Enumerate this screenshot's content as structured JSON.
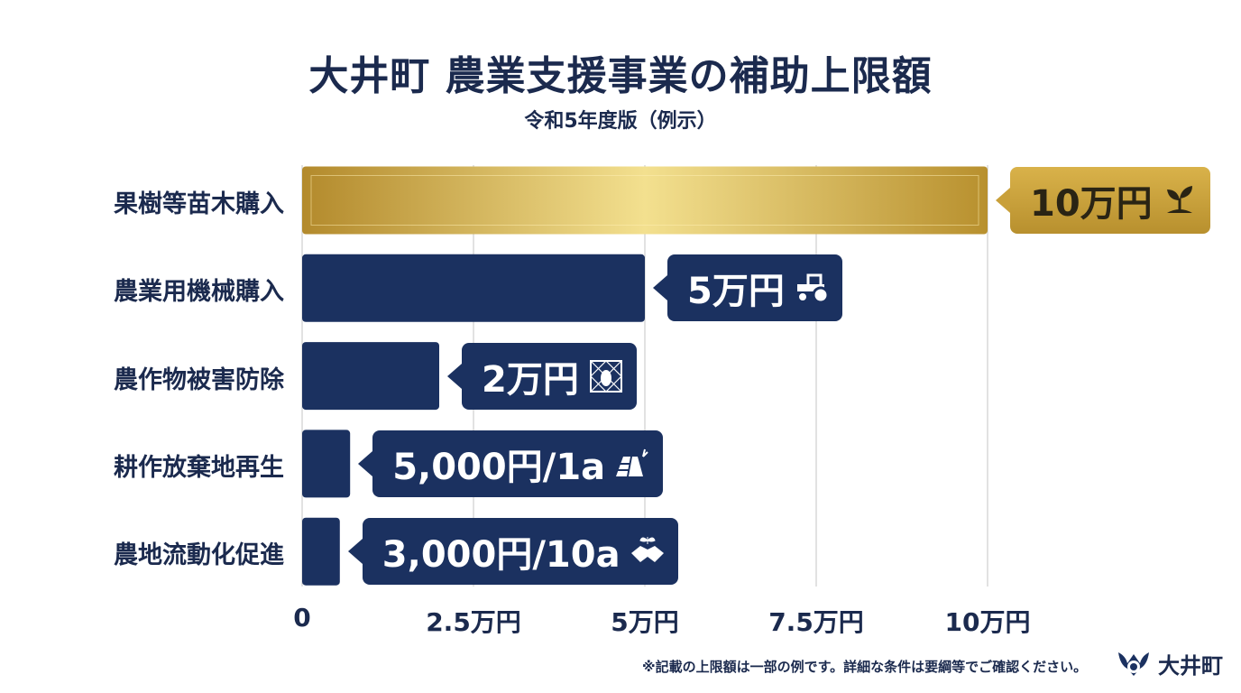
{
  "header": {
    "title": "大井町 農業支援事業の補助上限額",
    "subtitle": "令和5年度版（例示）"
  },
  "chart_data": {
    "type": "bar",
    "orientation": "horizontal",
    "title": "大井町 農業支援事業の補助上限額",
    "subtitle": "令和5年度版（例示）",
    "categories": [
      "果樹等苗木購入",
      "農業用機械購入",
      "農作物被害防除",
      "耕作放棄地再生",
      "農地流動化促進"
    ],
    "values": [
      10,
      5,
      2,
      0.7,
      0.55
    ],
    "value_unit": "万円",
    "data_labels": [
      "10万円",
      "5万円",
      "2万円",
      "5,000円/1a",
      "3,000円/10a"
    ],
    "icons": [
      "sprout-icon",
      "tractor-icon",
      "pest-net-icon",
      "farmland-icon",
      "handshake-icon"
    ],
    "colors": [
      "#c9a03a",
      "#1b3160",
      "#1b3160",
      "#1b3160",
      "#1b3160"
    ],
    "xlim": [
      0,
      10
    ],
    "xticks": [
      0,
      2.5,
      5,
      7.5,
      10
    ],
    "xtick_labels": [
      "0",
      "2.5万円",
      "5万円",
      "7.5万円",
      "10万円"
    ],
    "grid": true,
    "xlabel": "",
    "ylabel": ""
  },
  "footer": {
    "note": "※記載の上限額は一部の例です。詳細な条件は要綱等でご確認ください。",
    "logo_text": "大井町"
  }
}
